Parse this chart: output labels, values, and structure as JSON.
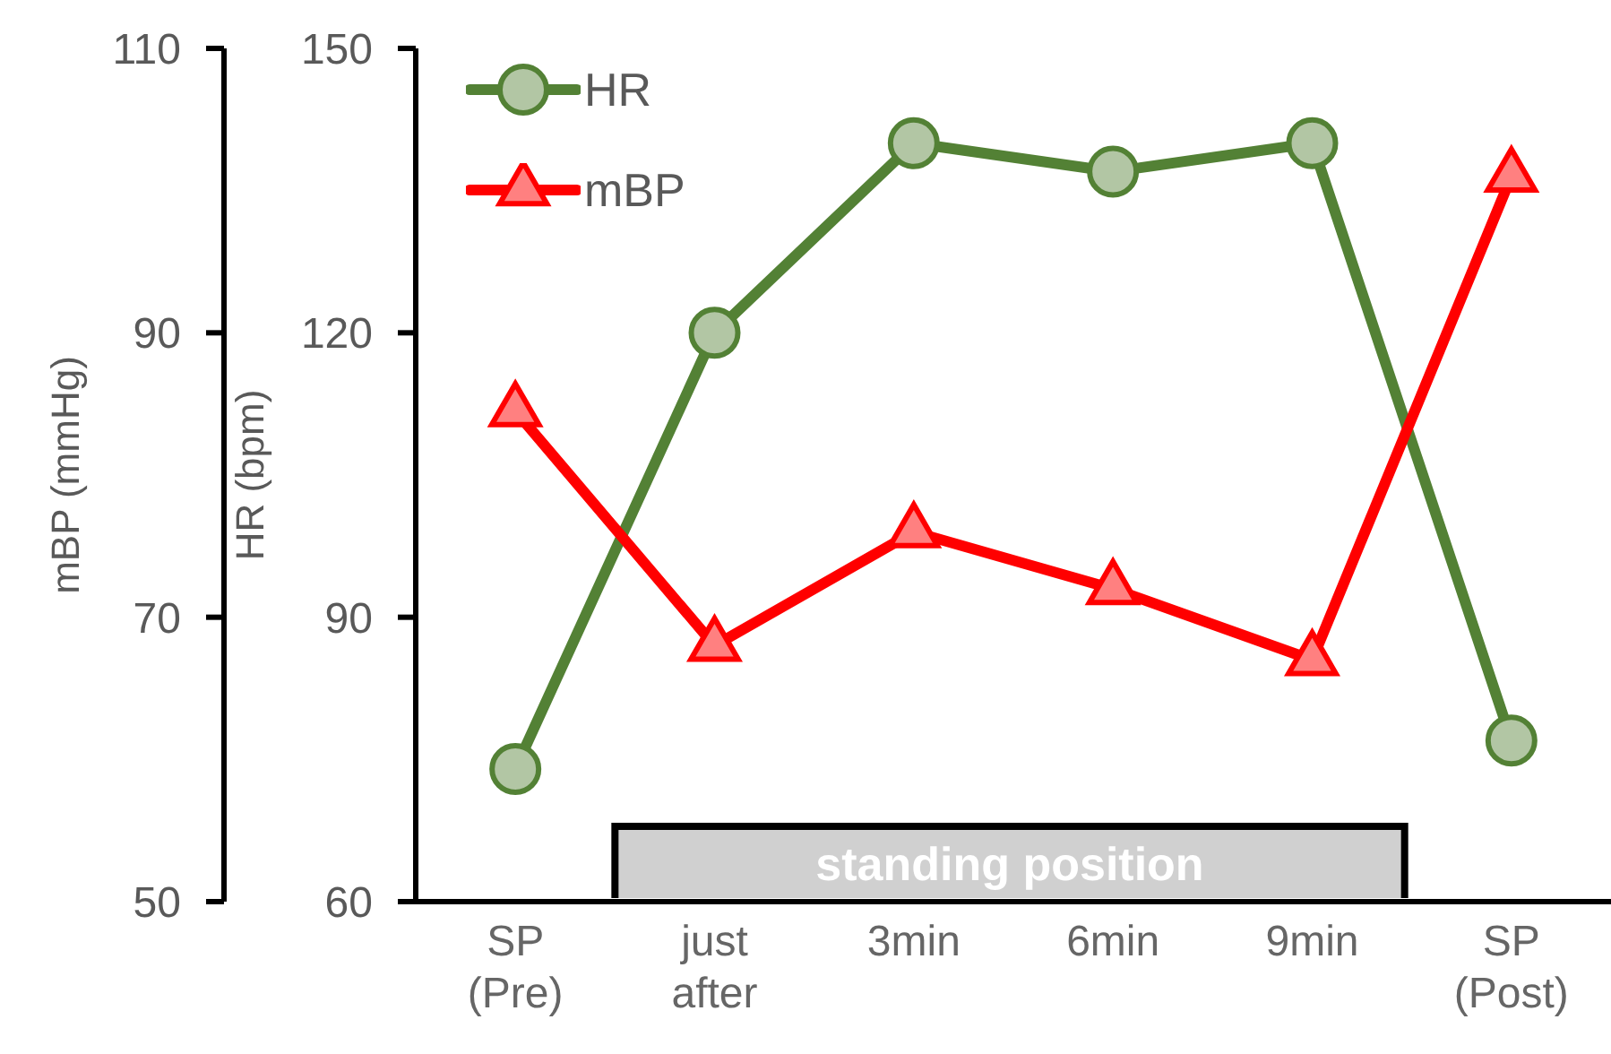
{
  "chart_data": {
    "type": "line",
    "ylabel": "HR (bpm)",
    "y2label": "mBP (mmHg)",
    "categories": [
      "SP\n(Pre)",
      "just\nafter",
      "3min",
      "6min",
      "9min",
      "SP\n(Post)"
    ],
    "series": [
      {
        "name": "HR",
        "color": "#538135",
        "marker": "circle",
        "values": [
          74,
          120,
          140,
          137,
          140,
          77
        ]
      },
      {
        "name": "mBP",
        "color": "#ff0000",
        "marker": "triangle",
        "axis": "y2",
        "values": [
          84.5,
          68,
          76,
          72,
          67,
          101
        ]
      }
    ],
    "ylim": [
      60,
      150
    ],
    "yticks": [
      60,
      90,
      120,
      150
    ],
    "y2lim": [
      50,
      110
    ],
    "y2ticks": [
      50,
      70,
      90,
      110
    ],
    "grid": false,
    "legend": "top left",
    "line_style": "solid",
    "annotations": [
      "standing position"
    ]
  }
}
